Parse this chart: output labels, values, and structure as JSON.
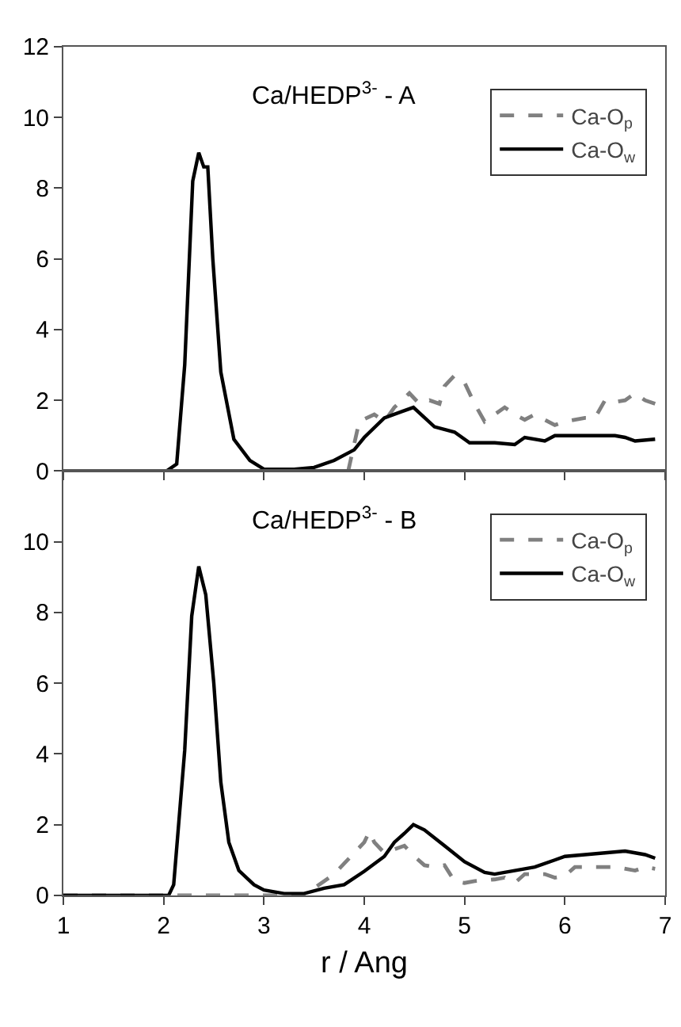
{
  "chart_data": [
    {
      "type": "line",
      "annotations": [
        "Ca/HEDP$^{3-}$ - A"
      ],
      "xlim": [
        1,
        7
      ],
      "xticks": [
        1,
        2,
        3,
        4,
        5,
        6,
        7
      ],
      "ylim": [
        0,
        12
      ],
      "yticks": [
        0,
        2,
        4,
        6,
        8,
        10,
        12
      ],
      "tick_labels": "y",
      "grid": false,
      "legend": "top right",
      "marker": "none",
      "series": [
        {
          "name": "Ca-O$_{p}$",
          "color": "#808080",
          "line_style": "dashed",
          "x": [
            1,
            2,
            3,
            3.84,
            3.95,
            4.1,
            4.2,
            4.3,
            4.45,
            4.55,
            4.65,
            4.75,
            4.8,
            4.9,
            5.0,
            5.1,
            5.2,
            5.3,
            5.4,
            5.5,
            5.6,
            5.7,
            5.8,
            5.9,
            6.0,
            6.2,
            6.3,
            6.4,
            6.5,
            6.6,
            6.7,
            6.8,
            6.9
          ],
          "values": [
            0,
            0,
            0,
            0,
            1.4,
            1.6,
            1.4,
            1.8,
            2.2,
            1.9,
            2.0,
            1.9,
            2.4,
            2.7,
            2.5,
            1.9,
            1.4,
            1.6,
            1.8,
            1.6,
            1.45,
            1.6,
            1.45,
            1.3,
            1.4,
            1.5,
            1.5,
            2.0,
            1.95,
            2.0,
            2.2,
            2.0,
            1.9
          ]
        },
        {
          "name": "Ca-O$_{w}$",
          "color": "#000000",
          "line_style": "solid",
          "x": [
            1,
            2.03,
            2.13,
            2.21,
            2.29,
            2.35,
            2.4,
            2.44,
            2.49,
            2.57,
            2.7,
            2.86,
            3.0,
            3.3,
            3.5,
            3.7,
            3.9,
            4.0,
            4.2,
            4.49,
            4.7,
            4.9,
            5.05,
            5.3,
            5.5,
            5.6,
            5.8,
            5.9,
            6.2,
            6.5,
            6.6,
            6.7,
            6.9
          ],
          "values": [
            0,
            0,
            0.2,
            3.0,
            8.2,
            9.0,
            8.6,
            8.6,
            6.0,
            2.8,
            0.9,
            0.3,
            0.05,
            0.05,
            0.1,
            0.3,
            0.6,
            0.95,
            1.5,
            1.8,
            1.25,
            1.1,
            0.8,
            0.8,
            0.75,
            0.95,
            0.85,
            1.0,
            1.0,
            1.0,
            0.95,
            0.85,
            0.9
          ]
        }
      ]
    },
    {
      "type": "line",
      "annotations": [
        "Ca/HEDP$^{3-}$ - B"
      ],
      "xlabel": "r / Ang",
      "xlim": [
        1,
        7
      ],
      "xticks": [
        1,
        2,
        3,
        4,
        5,
        6,
        7
      ],
      "ylim": [
        0,
        12
      ],
      "yticks": [
        0,
        2,
        4,
        6,
        8,
        10
      ],
      "grid": false,
      "legend": "top right",
      "marker": "none",
      "series": [
        {
          "name": "Ca-O$_{p}$",
          "color": "#808080",
          "line_style": "dashed",
          "x": [
            1,
            2,
            3,
            3.4,
            3.5,
            3.6,
            3.7,
            3.8,
            3.9,
            4.0,
            4.05,
            4.1,
            4.2,
            4.3,
            4.4,
            4.5,
            4.6,
            4.7,
            4.8,
            4.9,
            5.0,
            5.1,
            5.3,
            5.4,
            5.5,
            5.6,
            5.8,
            5.9,
            6.0,
            6.1,
            6.3,
            6.5,
            6.7,
            6.8,
            6.9
          ],
          "values": [
            0,
            0,
            0,
            0,
            0.2,
            0.4,
            0.6,
            0.9,
            1.2,
            1.5,
            1.8,
            1.5,
            1.2,
            1.3,
            1.4,
            1.1,
            0.85,
            0.8,
            0.85,
            0.4,
            0.35,
            0.4,
            0.45,
            0.5,
            0.35,
            0.6,
            0.6,
            0.5,
            0.55,
            0.8,
            0.8,
            0.8,
            0.7,
            0.8,
            0.75
          ]
        },
        {
          "name": "Ca-O$_{w}$",
          "color": "#000000",
          "line_style": "solid",
          "x": [
            1,
            2.05,
            2.1,
            2.21,
            2.28,
            2.35,
            2.42,
            2.5,
            2.57,
            2.65,
            2.75,
            2.9,
            3.0,
            3.2,
            3.4,
            3.6,
            3.8,
            4.0,
            4.2,
            4.3,
            4.4,
            4.49,
            4.6,
            4.8,
            5.0,
            5.2,
            5.3,
            5.5,
            5.7,
            5.9,
            6.0,
            6.2,
            6.4,
            6.6,
            6.8,
            6.9
          ],
          "values": [
            0,
            0,
            0.3,
            4.1,
            7.9,
            9.3,
            8.5,
            6.0,
            3.2,
            1.5,
            0.7,
            0.3,
            0.15,
            0.05,
            0.05,
            0.2,
            0.3,
            0.68,
            1.1,
            1.5,
            1.75,
            2.0,
            1.85,
            1.4,
            0.95,
            0.65,
            0.6,
            0.7,
            0.8,
            1.0,
            1.1,
            1.15,
            1.2,
            1.25,
            1.15,
            1.05
          ]
        }
      ]
    }
  ]
}
